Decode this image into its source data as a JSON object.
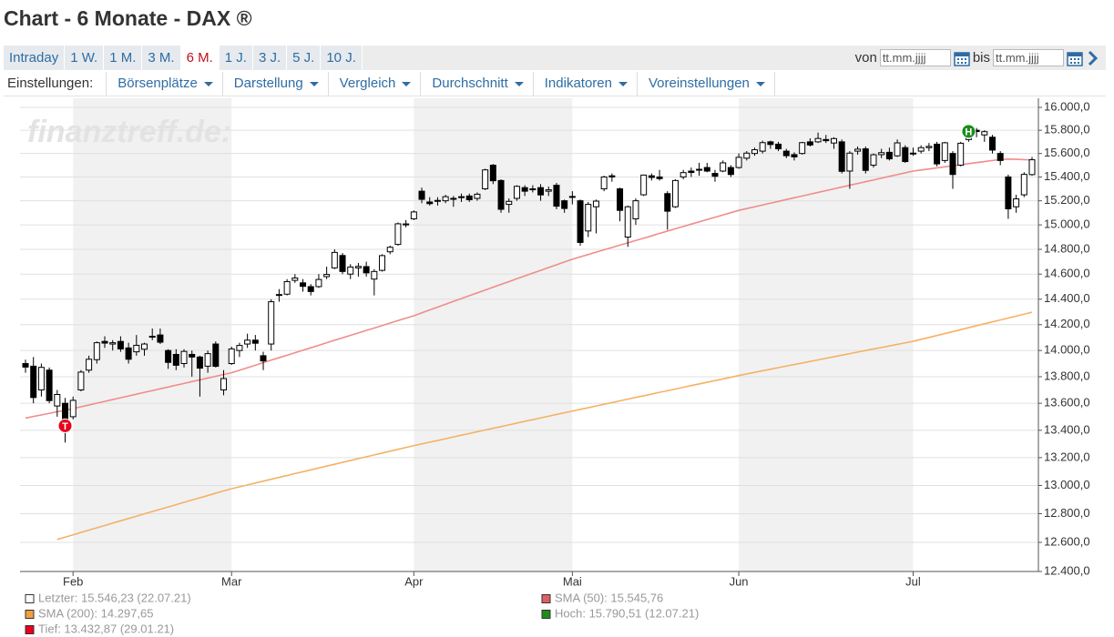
{
  "header": {
    "title": "Chart - 6 Monate - DAX ®"
  },
  "tabs": [
    "Intraday",
    "1 W.",
    "1 M.",
    "3 M.",
    "6 M.",
    "1 J.",
    "3 J.",
    "5 J.",
    "10 J."
  ],
  "active_tab": 4,
  "date_range": {
    "from_label": "von",
    "from_placeholder": "tt.mm.jjjj",
    "to_label": "bis",
    "to_placeholder": "tt.mm.jjjj"
  },
  "settings": {
    "label": "Einstellungen:",
    "menus": [
      "Börsenplätze",
      "Darstellung",
      "Vergleich",
      "Durchschnitt",
      "Indikatoren",
      "Voreinstellungen"
    ]
  },
  "chart_data": {
    "type": "candlestick",
    "watermark": "finanztreff.de:",
    "log_scale": true,
    "grid": true,
    "shade_alternate_months": true,
    "up_color": "#ffffff",
    "down_color": "#000000",
    "categories": [
      null,
      null,
      null,
      null,
      null,
      null,
      "Feb",
      null,
      null,
      null,
      null,
      null,
      null,
      null,
      null,
      null,
      null,
      null,
      null,
      null,
      null,
      null,
      null,
      null,
      null,
      null,
      "Mar",
      null,
      null,
      null,
      null,
      null,
      null,
      null,
      null,
      null,
      null,
      null,
      null,
      null,
      null,
      null,
      null,
      null,
      null,
      null,
      null,
      null,
      null,
      "Apr",
      null,
      null,
      null,
      null,
      null,
      null,
      null,
      null,
      null,
      null,
      null,
      null,
      null,
      null,
      null,
      null,
      null,
      null,
      null,
      "Mai",
      null,
      null,
      null,
      null,
      null,
      null,
      null,
      null,
      null,
      null,
      null,
      null,
      null,
      null,
      null,
      null,
      null,
      null,
      null,
      null,
      "Jun",
      null,
      null,
      null,
      null,
      null,
      null,
      null,
      null,
      null,
      null,
      null,
      null,
      null,
      null,
      null,
      null,
      null,
      null,
      null,
      null,
      null,
      "Jul",
      null,
      null,
      null,
      null,
      null,
      null,
      null,
      null,
      null,
      null,
      null,
      null,
      null,
      null,
      null
    ],
    "open": [
      13900,
      13880,
      13700,
      13850,
      13580,
      13600,
      13500,
      13700,
      13850,
      13930,
      14070,
      14050,
      14070,
      14020,
      13990,
      14010,
      14110,
      14120,
      14000,
      13970,
      13900,
      13970,
      13950,
      13880,
      14050,
      13700,
      13900,
      14000,
      14050,
      14080,
      13960,
      14050,
      14430,
      14440,
      14550,
      14530,
      14500,
      14500,
      14580,
      14650,
      14750,
      14600,
      14650,
      14660,
      14560,
      14630,
      14780,
      14840,
      15000,
      15050,
      15280,
      15190,
      15200,
      15200,
      15220,
      15230,
      15240,
      15220,
      15300,
      15500,
      15370,
      15170,
      15220,
      15310,
      15300,
      15310,
      15280,
      15330,
      15200,
      15230,
      15200,
      14950,
      15150,
      15300,
      15410,
      15300,
      14900,
      15050,
      15250,
      15410,
      15400,
      15260,
      15150,
      15400,
      15450,
      15460,
      15480,
      15430,
      15450,
      15480,
      15480,
      15560,
      15600,
      15620,
      15700,
      15680,
      15620,
      15590,
      15600,
      15700,
      15700,
      15720,
      15690,
      15700,
      15450,
      15620,
      15640,
      15500,
      15590,
      15610,
      15580,
      15650,
      15600,
      15620,
      15650,
      15680,
      15540,
      15600,
      15500,
      15720,
      15800,
      15760,
      15740,
      15600,
      15400,
      15150,
      15250,
      15420
    ],
    "high": [
      13930,
      13950,
      13900,
      13870,
      13700,
      13640,
      13650,
      13850,
      13960,
      14070,
      14110,
      14080,
      14110,
      14060,
      14120,
      14060,
      14170,
      14170,
      14010,
      14010,
      14010,
      14000,
      13960,
      14000,
      14070,
      13850,
      14030,
      14060,
      14130,
      14120,
      13990,
      14400,
      14480,
      14560,
      14600,
      14560,
      14520,
      14600,
      14660,
      14800,
      14770,
      14680,
      14690,
      14700,
      14640,
      14760,
      14830,
      15020,
      15040,
      15120,
      15310,
      15230,
      15230,
      15250,
      15240,
      15260,
      15260,
      15270,
      15470,
      15510,
      15380,
      15220,
      15330,
      15330,
      15330,
      15340,
      15320,
      15350,
      15210,
      15280,
      15210,
      15190,
      15210,
      15410,
      15430,
      15310,
      15160,
      15220,
      15420,
      15430,
      15460,
      15280,
      15380,
      15460,
      15480,
      15520,
      15520,
      15460,
      15540,
      15500,
      15600,
      15620,
      15650,
      15710,
      15710,
      15700,
      15640,
      15610,
      15700,
      15730,
      15780,
      15760,
      15740,
      15720,
      15620,
      15660,
      15660,
      15600,
      15640,
      15650,
      15720,
      15670,
      15650,
      15670,
      15690,
      15700,
      15700,
      15620,
      15700,
      15800,
      15820,
      15800,
      15760,
      15620,
      15420,
      15250,
      15440,
      15570
    ],
    "low": [
      13830,
      13600,
      13650,
      13600,
      13500,
      13310,
      13480,
      13690,
      13830,
      13900,
      14020,
      14000,
      13990,
      13900,
      13960,
      13960,
      14080,
      14050,
      13860,
      13850,
      13870,
      13800,
      13650,
      13830,
      13870,
      13660,
      13890,
      13950,
      14020,
      14000,
      13850,
      14000,
      14380,
      14430,
      14530,
      14460,
      14430,
      14490,
      14560,
      14640,
      14600,
      14560,
      14580,
      14580,
      14430,
      14620,
      14760,
      14830,
      14980,
      15040,
      15180,
      15160,
      15160,
      15180,
      15150,
      15190,
      15190,
      15200,
      15290,
      15340,
      15100,
      15100,
      15200,
      15240,
      15270,
      15200,
      15240,
      15130,
      15100,
      15170,
      14830,
      14900,
      14930,
      15280,
      15360,
      15030,
      14820,
      15000,
      15240,
      15370,
      15370,
      14960,
      15140,
      15380,
      15400,
      15410,
      15440,
      15360,
      15440,
      15400,
      15470,
      15540,
      15580,
      15600,
      15640,
      15620,
      15560,
      15540,
      15590,
      15660,
      15690,
      15690,
      15640,
      15430,
      15300,
      15590,
      15430,
      15480,
      15560,
      15540,
      15570,
      15520,
      15580,
      15600,
      15620,
      15490,
      15520,
      15300,
      15490,
      15700,
      15740,
      15700,
      15600,
      15500,
      15050,
      15100,
      15230,
      15410
    ],
    "close": [
      13873,
      13643,
      13871,
      13620,
      13666,
      13432.87,
      13622,
      13835,
      13933,
      14060,
      14057,
      14060,
      14012,
      13933,
      14040,
      14050,
      14109,
      14064,
      13909,
      13887,
      13993,
      13950,
      13865,
      13976,
      13879,
      13786,
      14012,
      14039,
      14080,
      14056,
      13920,
      14380,
      14437,
      14540,
      14569,
      14502,
      14461,
      14557,
      14597,
      14775,
      14621,
      14657,
      14662,
      14610,
      14621,
      14749,
      14817,
      15009,
      15008,
      15107,
      15212,
      15176,
      15203,
      15234,
      15215,
      15234,
      15209,
      15255,
      15460,
      15368,
      15129,
      15195,
      15321,
      15280,
      15297,
      15249,
      15292,
      15155,
      15136,
      15236,
      14856,
      15170,
      15197,
      15400,
      15400,
      15120,
      15150,
      15200,
      15416,
      15396,
      15386,
      15113,
      15370,
      15437,
      15438,
      15465,
      15450,
      15406,
      15520,
      15421,
      15567,
      15603,
      15632,
      15693,
      15677,
      15640,
      15581,
      15571,
      15693,
      15673,
      15729,
      15710,
      15728,
      15448,
      15603,
      15637,
      15456,
      15589,
      15607,
      15554,
      15691,
      15531,
      15603,
      15650,
      15661,
      15511,
      15692,
      15421,
      15688,
      15790.51,
      15789,
      15788,
      15629,
      15540,
      15133,
      15216,
      15422,
      15546.23
    ],
    "lines": [
      {
        "color": "#f08c8c",
        "values": [
          13490,
          13502,
          13513,
          13525,
          13537,
          13548,
          13560,
          13574,
          13587,
          13601,
          13614,
          13628,
          13641,
          13655,
          13668,
          13682,
          13695,
          13709,
          13722,
          13736,
          13749,
          13763,
          13776,
          13790,
          13803,
          13817,
          13830,
          13849,
          13868,
          13887,
          13907,
          13926,
          13945,
          13964,
          13983,
          14002,
          14021,
          14040,
          14060,
          14079,
          14098,
          14117,
          14136,
          14155,
          14174,
          14193,
          14213,
          14232,
          14251,
          14270,
          14293,
          14315,
          14338,
          14360,
          14383,
          14405,
          14428,
          14450,
          14473,
          14495,
          14518,
          14540,
          14563,
          14585,
          14608,
          14630,
          14653,
          14675,
          14698,
          14720,
          14739,
          14758,
          14777,
          14796,
          14815,
          14834,
          14853,
          14872,
          14891,
          14910,
          14930,
          14949,
          14968,
          14987,
          15006,
          15025,
          15044,
          15063,
          15082,
          15101,
          15120,
          15135,
          15150,
          15165,
          15180,
          15195,
          15210,
          15225,
          15240,
          15255,
          15270,
          15285,
          15300,
          15315,
          15330,
          15345,
          15360,
          15375,
          15390,
          15405,
          15420,
          15435,
          15450,
          15459,
          15468,
          15477,
          15486,
          15495,
          15504,
          15513,
          15522,
          15531,
          15540,
          15548,
          15552,
          15550,
          15547,
          15545.76
        ]
      },
      {
        "color": "#f4b266",
        "values": [
          null,
          null,
          null,
          null,
          12620,
          12636,
          12652,
          12669,
          12685,
          12701,
          12717,
          12734,
          12750,
          12766,
          12782,
          12799,
          12815,
          12831,
          12847,
          12863,
          12880,
          12896,
          12912,
          12928,
          12945,
          12961,
          12977,
          12990,
          13004,
          13017,
          13031,
          13044,
          13058,
          13071,
          13085,
          13098,
          13112,
          13125,
          13139,
          13152,
          13166,
          13179,
          13193,
          13206,
          13220,
          13233,
          13247,
          13260,
          13274,
          13287,
          13300,
          13313,
          13325,
          13338,
          13351,
          13364,
          13376,
          13389,
          13402,
          13415,
          13427,
          13440,
          13453,
          13466,
          13478,
          13491,
          13504,
          13517,
          13529,
          13542,
          13555,
          13567,
          13580,
          13593,
          13605,
          13618,
          13631,
          13644,
          13656,
          13669,
          13682,
          13694,
          13707,
          13720,
          13733,
          13745,
          13758,
          13771,
          13783,
          13796,
          13809,
          13821,
          13833,
          13845,
          13857,
          13869,
          13881,
          13893,
          13904,
          13916,
          13928,
          13940,
          13952,
          13964,
          13976,
          13988,
          14000,
          14012,
          14023,
          14035,
          14047,
          14059,
          14071,
          14086,
          14101,
          14116,
          14131,
          14146,
          14161,
          14177,
          14192,
          14207,
          14222,
          14237,
          14252,
          14267,
          14282,
          14297.65
        ]
      }
    ],
    "ylim": [
      12400,
      16000
    ],
    "yticks": [
      {
        "value": 12400,
        "label": "12.400,0"
      },
      {
        "value": 12600,
        "label": "12.600,0"
      },
      {
        "value": 12800,
        "label": "12.800,0"
      },
      {
        "value": 13000,
        "label": "13.000,0"
      },
      {
        "value": 13200,
        "label": "13.200,0"
      },
      {
        "value": 13400,
        "label": "13.400,0"
      },
      {
        "value": 13600,
        "label": "13.600,0"
      },
      {
        "value": 13800,
        "label": "13.800,0"
      },
      {
        "value": 14000,
        "label": "14.000,0"
      },
      {
        "value": 14200,
        "label": "14.200,0"
      },
      {
        "value": 14400,
        "label": "14.400,0"
      },
      {
        "value": 14600,
        "label": "14.600,0"
      },
      {
        "value": 14800,
        "label": "14.800,0"
      },
      {
        "value": 15000,
        "label": "15.000,0"
      },
      {
        "value": 15200,
        "label": "15.200,0"
      },
      {
        "value": 15400,
        "label": "15.400,0"
      },
      {
        "value": 15600,
        "label": "15.600,0"
      },
      {
        "value": 15800,
        "label": "15.800,0"
      },
      {
        "value": 16000,
        "label": "16.000,0"
      }
    ],
    "low_marker": {
      "label": "T",
      "color": "#e8001c"
    },
    "high_marker": {
      "label": "H",
      "color": "#1e8c1e"
    },
    "legend": [
      {
        "text": "Letzter: 15.546,23 (22.07.21)",
        "color": "#ffffff"
      },
      {
        "text": "SMA (50): 15.545,76",
        "color": "#e06060"
      },
      {
        "text": "SMA (200): 14.297,65",
        "color": "#f0a040"
      },
      {
        "text": "Hoch: 15.790,51 (12.07.21)",
        "color": "#1e8c1e"
      },
      {
        "text": "Tief: 13.432,87 (29.01.21)",
        "color": "#e8001c"
      }
    ]
  }
}
